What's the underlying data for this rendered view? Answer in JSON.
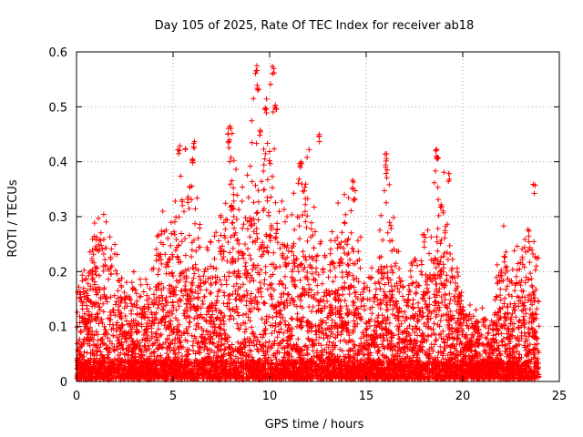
{
  "chart_data": {
    "type": "scatter",
    "title": "Day 105 of 2025, Rate Of TEC Index for receiver ab18",
    "xlabel": "GPS time / hours",
    "ylabel": "ROTI / TECUs",
    "xlim": [
      0,
      25
    ],
    "ylim": [
      0,
      0.6
    ],
    "xticks": [
      0,
      5,
      10,
      15,
      20,
      25
    ],
    "yticks": [
      0,
      0.1,
      0.2,
      0.3,
      0.4,
      0.5,
      0.6
    ],
    "xtick_labels": [
      "0",
      "5",
      "10",
      "15",
      "20",
      "25"
    ],
    "ytick_labels": [
      "0",
      "0.1",
      "0.2",
      "0.3",
      "0.4",
      "0.5",
      "0.6"
    ],
    "grid": true,
    "legend": "none",
    "marker": "+",
    "color": "#ff0000",
    "series": [
      {
        "envelope": [
          [
            0.0,
            0.21
          ],
          [
            0.5,
            0.2
          ],
          [
            1.0,
            0.32
          ],
          [
            1.5,
            0.3
          ],
          [
            2.0,
            0.25
          ],
          [
            2.5,
            0.18
          ],
          [
            3.0,
            0.2
          ],
          [
            3.5,
            0.18
          ],
          [
            4.0,
            0.22
          ],
          [
            4.5,
            0.34
          ],
          [
            5.0,
            0.3
          ],
          [
            5.5,
            0.42
          ],
          [
            6.0,
            0.44
          ],
          [
            6.5,
            0.25
          ],
          [
            7.0,
            0.26
          ],
          [
            7.5,
            0.3
          ],
          [
            8.0,
            0.46
          ],
          [
            8.5,
            0.34
          ],
          [
            9.0,
            0.45
          ],
          [
            9.25,
            0.57
          ],
          [
            9.5,
            0.44
          ],
          [
            9.75,
            0.49
          ],
          [
            10.0,
            0.57
          ],
          [
            10.5,
            0.33
          ],
          [
            11.0,
            0.3
          ],
          [
            11.5,
            0.39
          ],
          [
            12.0,
            0.44
          ],
          [
            12.5,
            0.3
          ],
          [
            13.0,
            0.24
          ],
          [
            13.5,
            0.32
          ],
          [
            14.0,
            0.37
          ],
          [
            14.5,
            0.3
          ],
          [
            15.0,
            0.21
          ],
          [
            15.5,
            0.2
          ],
          [
            16.0,
            0.42
          ],
          [
            16.5,
            0.28
          ],
          [
            17.0,
            0.2
          ],
          [
            17.5,
            0.22
          ],
          [
            18.0,
            0.33
          ],
          [
            18.5,
            0.43
          ],
          [
            19.0,
            0.38
          ],
          [
            19.5,
            0.26
          ],
          [
            20.0,
            0.16
          ],
          [
            20.5,
            0.13
          ],
          [
            21.0,
            0.14
          ],
          [
            21.5,
            0.12
          ],
          [
            22.0,
            0.3
          ],
          [
            22.5,
            0.22
          ],
          [
            23.0,
            0.29
          ],
          [
            23.5,
            0.35
          ],
          [
            24.0,
            0.2
          ]
        ],
        "clusters": [
          {
            "x": 9.3,
            "y": 0.57
          },
          {
            "x": 9.4,
            "y": 0.54
          },
          {
            "x": 9.5,
            "y": 0.45
          },
          {
            "x": 9.8,
            "y": 0.49
          },
          {
            "x": 10.2,
            "y": 0.57
          },
          {
            "x": 10.3,
            "y": 0.5
          },
          {
            "x": 12.6,
            "y": 0.44
          },
          {
            "x": 16.0,
            "y": 0.41
          },
          {
            "x": 16.05,
            "y": 0.38
          },
          {
            "x": 18.6,
            "y": 0.42
          },
          {
            "x": 18.7,
            "y": 0.4
          },
          {
            "x": 6.1,
            "y": 0.43
          },
          {
            "x": 6.0,
            "y": 0.4
          },
          {
            "x": 5.3,
            "y": 0.42
          },
          {
            "x": 7.9,
            "y": 0.46
          },
          {
            "x": 7.9,
            "y": 0.43
          },
          {
            "x": 14.3,
            "y": 0.36
          },
          {
            "x": 14.4,
            "y": 0.34
          },
          {
            "x": 23.7,
            "y": 0.35
          },
          {
            "x": 19.3,
            "y": 0.37
          },
          {
            "x": 11.6,
            "y": 0.39
          }
        ]
      }
    ]
  }
}
